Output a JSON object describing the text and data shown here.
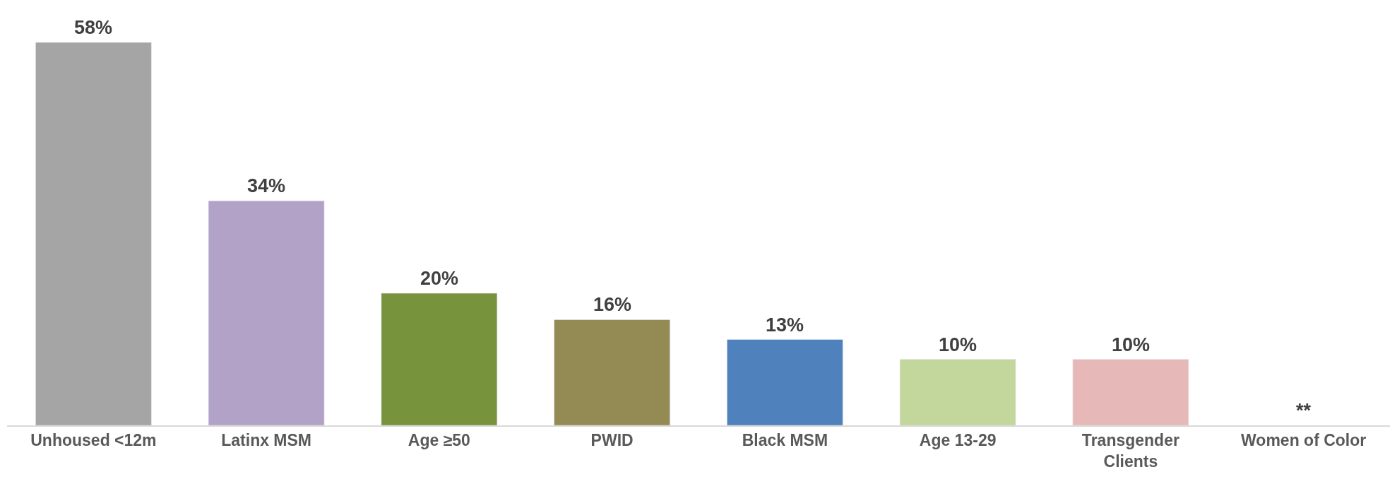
{
  "chart_data": {
    "type": "bar",
    "categories": [
      "Unhoused <12m",
      "Latinx MSM",
      "Age ≥50",
      "PWID",
      "Black MSM",
      "Age 13-29",
      "Transgender Clients",
      "Women of Color"
    ],
    "values": [
      58,
      34,
      20,
      16,
      13,
      10,
      10,
      null
    ],
    "colors": [
      "#a5a5a5",
      "#b3a2c7",
      "#77933c",
      "#948a54",
      "#4f81bd",
      "#c3d69b",
      "#e6b9b8",
      "#ffffff"
    ],
    "value_labels": [
      "58%",
      "34%",
      "20%",
      "16%",
      "13%",
      "10%",
      "10%",
      "**"
    ]
  }
}
